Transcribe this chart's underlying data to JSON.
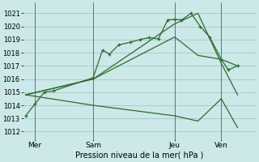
{
  "background_color": "#cce8e8",
  "grid_color": "#aacccc",
  "line_color": "#2d6b2d",
  "xlabel": "Pression niveau de la mer( hPa )",
  "ylim": [
    1011.5,
    1021.8
  ],
  "xlim": [
    0,
    10.0
  ],
  "yticks": [
    1012,
    1013,
    1014,
    1015,
    1016,
    1017,
    1018,
    1019,
    1020,
    1021
  ],
  "xtick_labels": [
    "Mer",
    "Sam",
    "Jeu",
    "Ven"
  ],
  "xtick_positions": [
    0.5,
    3.0,
    6.5,
    8.5
  ],
  "vlines": [
    0.5,
    3.0,
    6.5,
    8.5
  ],
  "series_marked": {
    "x": [
      0.1,
      0.5,
      0.9,
      1.3,
      3.0,
      3.4,
      3.7,
      4.1,
      4.6,
      5.0,
      5.4,
      5.8,
      6.2,
      6.5,
      6.8,
      7.2,
      7.6,
      8.0,
      8.5,
      8.8,
      9.2
    ],
    "y": [
      1013.2,
      1014.1,
      1015.0,
      1015.1,
      1016.1,
      1018.2,
      1017.9,
      1018.6,
      1018.8,
      1019.0,
      1019.15,
      1019.05,
      1020.5,
      1020.55,
      1020.5,
      1021.0,
      1020.0,
      1019.2,
      1017.5,
      1016.7,
      1017.0
    ]
  },
  "series_smooth": [
    {
      "x": [
        0.1,
        3.0,
        6.5,
        7.5,
        8.5,
        9.2
      ],
      "y": [
        1014.8,
        1016.0,
        1019.2,
        1017.8,
        1017.5,
        1017.0
      ]
    },
    {
      "x": [
        0.1,
        3.0,
        6.5,
        7.5,
        8.5,
        9.2
      ],
      "y": [
        1014.8,
        1016.0,
        1020.2,
        1021.0,
        1017.2,
        1014.8
      ]
    },
    {
      "x": [
        0.1,
        3.0,
        6.5,
        7.5,
        8.5,
        9.2
      ],
      "y": [
        1014.8,
        1014.0,
        1013.2,
        1012.8,
        1014.5,
        1012.3
      ]
    }
  ]
}
